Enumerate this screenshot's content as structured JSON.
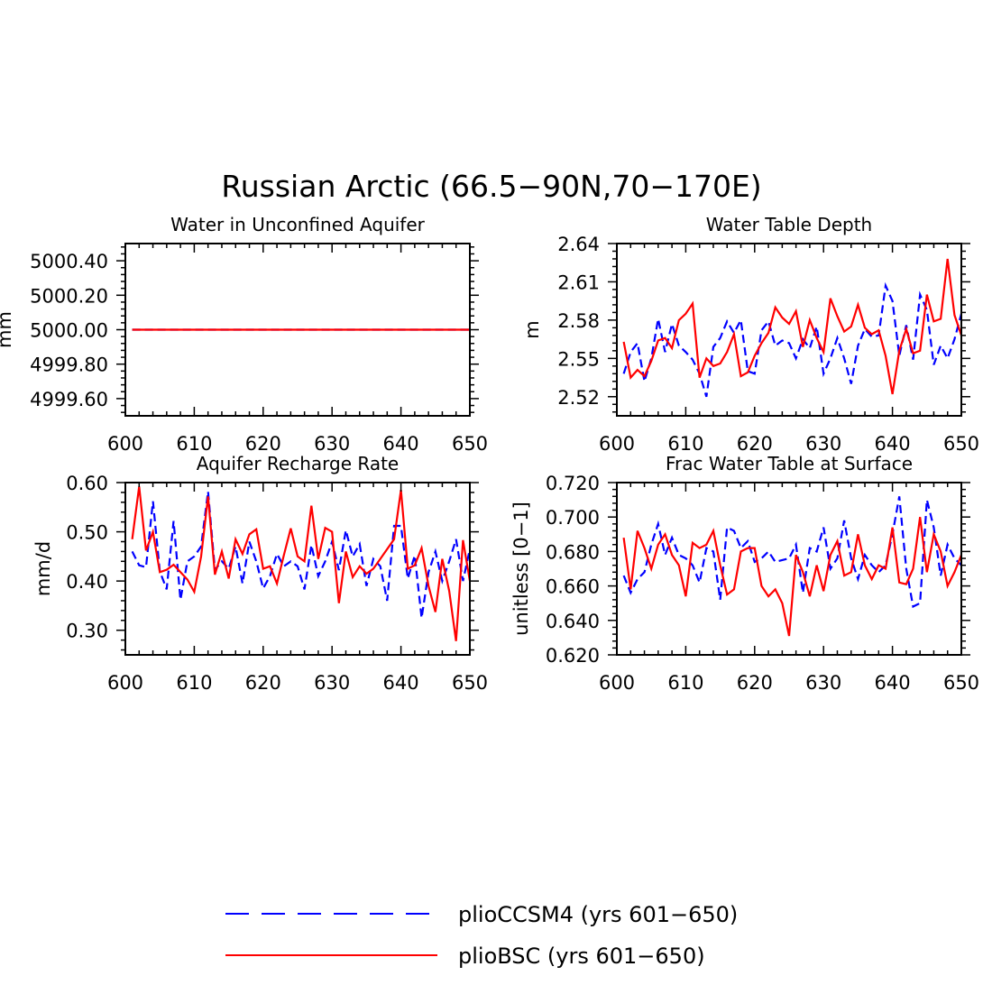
{
  "figure": {
    "title": "Russian Arctic (66.5−90N,70−170E)"
  },
  "legend": {
    "position": "bottom-center",
    "entries": [
      {
        "label": "plioCCSM4 (yrs 601−650)",
        "color": "#0000ff",
        "style": "dashed"
      },
      {
        "label": "plioBSC (yrs 601−650)",
        "color": "#ff0000",
        "style": "solid"
      }
    ]
  },
  "chart_data": [
    {
      "type": "line",
      "title": "Water in Unconfined Aquifer",
      "xlabel": "",
      "ylabel": "mm",
      "xlim": [
        600,
        650
      ],
      "ylim": [
        4999.5,
        5000.5
      ],
      "xticks": [
        600,
        610,
        620,
        630,
        640,
        650
      ],
      "xtick_labels": [
        "600",
        "610",
        "620",
        "630",
        "640",
        "650"
      ],
      "yticks": [
        4999.6,
        4999.8,
        5000.0,
        5000.2,
        5000.4
      ],
      "ytick_labels": [
        "4999.60",
        "4999.80",
        "5000.00",
        "5000.20",
        "5000.40"
      ],
      "x_start": 601,
      "series": [
        {
          "name": "plioCCSM4 (yrs 601−650)",
          "color": "#0000ff",
          "style": "dashed",
          "values": [
            5000,
            5000,
            5000,
            5000,
            5000,
            5000,
            5000,
            5000,
            5000,
            5000,
            5000,
            5000,
            5000,
            5000,
            5000,
            5000,
            5000,
            5000,
            5000,
            5000,
            5000,
            5000,
            5000,
            5000,
            5000,
            5000,
            5000,
            5000,
            5000,
            5000,
            5000,
            5000,
            5000,
            5000,
            5000,
            5000,
            5000,
            5000,
            5000,
            5000,
            5000,
            5000,
            5000,
            5000,
            5000,
            5000,
            5000,
            5000,
            5000,
            5000
          ]
        },
        {
          "name": "plioBSC (yrs 601−650)",
          "color": "#ff0000",
          "style": "solid",
          "values": [
            5000,
            5000,
            5000,
            5000,
            5000,
            5000,
            5000,
            5000,
            5000,
            5000,
            5000,
            5000,
            5000,
            5000,
            5000,
            5000,
            5000,
            5000,
            5000,
            5000,
            5000,
            5000,
            5000,
            5000,
            5000,
            5000,
            5000,
            5000,
            5000,
            5000,
            5000,
            5000,
            5000,
            5000,
            5000,
            5000,
            5000,
            5000,
            5000,
            5000,
            5000,
            5000,
            5000,
            5000,
            5000,
            5000,
            5000,
            5000,
            5000,
            5000
          ]
        }
      ]
    },
    {
      "type": "line",
      "title": "Water Table Depth",
      "xlabel": "",
      "ylabel": "m",
      "xlim": [
        600,
        650
      ],
      "ylim": [
        2.505,
        2.64
      ],
      "xticks": [
        600,
        610,
        620,
        630,
        640,
        650
      ],
      "xtick_labels": [
        "600",
        "610",
        "620",
        "630",
        "640",
        "650"
      ],
      "yticks": [
        2.52,
        2.55,
        2.58,
        2.61,
        2.64
      ],
      "ytick_labels": [
        "2.52",
        "2.55",
        "2.58",
        "2.61",
        "2.64"
      ],
      "x_start": 601,
      "series": [
        {
          "name": "plioCCSM4 (yrs 601−650)",
          "color": "#0000ff",
          "style": "dashed",
          "values": [
            2.538,
            2.555,
            2.562,
            2.532,
            2.55,
            2.581,
            2.555,
            2.577,
            2.56,
            2.555,
            2.549,
            2.538,
            2.52,
            2.559,
            2.566,
            2.579,
            2.57,
            2.58,
            2.54,
            2.538,
            2.572,
            2.579,
            2.56,
            2.564,
            2.562,
            2.55,
            2.565,
            2.558,
            2.575,
            2.538,
            2.55,
            2.566,
            2.55,
            2.53,
            2.56,
            2.573,
            2.567,
            2.568,
            2.607,
            2.595,
            2.552,
            2.576,
            2.549,
            2.6,
            2.588,
            2.545,
            2.56,
            2.55,
            2.565,
            2.585
          ]
        },
        {
          "name": "plioBSC (yrs 601−650)",
          "color": "#ff0000",
          "style": "solid",
          "values": [
            2.563,
            2.535,
            2.541,
            2.536,
            2.548,
            2.564,
            2.566,
            2.558,
            2.58,
            2.585,
            2.593,
            2.535,
            2.55,
            2.544,
            2.546,
            2.555,
            2.569,
            2.536,
            2.539,
            2.552,
            2.562,
            2.57,
            2.59,
            2.582,
            2.577,
            2.587,
            2.559,
            2.58,
            2.566,
            2.555,
            2.597,
            2.583,
            2.571,
            2.575,
            2.592,
            2.574,
            2.569,
            2.572,
            2.552,
            2.522,
            2.556,
            2.573,
            2.554,
            2.556,
            2.6,
            2.579,
            2.581,
            2.628,
            2.584,
            2.568
          ]
        }
      ]
    },
    {
      "type": "line",
      "title": "Aquifer Recharge Rate",
      "xlabel": "",
      "ylabel": "mm/d",
      "xlim": [
        600,
        650
      ],
      "ylim": [
        0.25,
        0.6
      ],
      "xticks": [
        600,
        610,
        620,
        630,
        640,
        650
      ],
      "xtick_labels": [
        "600",
        "610",
        "620",
        "630",
        "640",
        "650"
      ],
      "yticks": [
        0.3,
        0.4,
        0.5,
        0.6
      ],
      "ytick_labels": [
        "0.30",
        "0.40",
        "0.50",
        "0.60"
      ],
      "x_start": 601,
      "series": [
        {
          "name": "plioCCSM4 (yrs 601−650)",
          "color": "#0000ff",
          "style": "dashed",
          "values": [
            0.46,
            0.432,
            0.428,
            0.562,
            0.42,
            0.383,
            0.522,
            0.362,
            0.44,
            0.45,
            0.47,
            0.582,
            0.423,
            0.44,
            0.425,
            0.47,
            0.395,
            0.48,
            0.44,
            0.385,
            0.41,
            0.455,
            0.43,
            0.44,
            0.43,
            0.383,
            0.473,
            0.41,
            0.44,
            0.48,
            0.422,
            0.503,
            0.45,
            0.475,
            0.39,
            0.445,
            0.43,
            0.36,
            0.512,
            0.512,
            0.405,
            0.452,
            0.325,
            0.418,
            0.46,
            0.4,
            0.44,
            0.485,
            0.4,
            0.465
          ]
        },
        {
          "name": "plioBSC (yrs 601−650)",
          "color": "#ff0000",
          "style": "solid",
          "values": [
            0.485,
            0.592,
            0.462,
            0.5,
            0.418,
            0.423,
            0.433,
            0.418,
            0.403,
            0.378,
            0.45,
            0.572,
            0.413,
            0.46,
            0.405,
            0.485,
            0.455,
            0.495,
            0.505,
            0.425,
            0.43,
            0.395,
            0.452,
            0.507,
            0.45,
            0.44,
            0.553,
            0.445,
            0.508,
            0.5,
            0.355,
            0.46,
            0.408,
            0.43,
            0.415,
            0.425,
            0.445,
            0.465,
            0.485,
            0.585,
            0.425,
            0.432,
            0.467,
            0.39,
            0.337,
            0.445,
            0.38,
            0.278,
            0.483,
            0.4
          ]
        }
      ]
    },
    {
      "type": "line",
      "title": "Frac Water Table at Surface",
      "xlabel": "",
      "ylabel": "unitless [0−1]",
      "xlim": [
        600,
        650
      ],
      "ylim": [
        0.62,
        0.72
      ],
      "xticks": [
        600,
        610,
        620,
        630,
        640,
        650
      ],
      "xtick_labels": [
        "600",
        "610",
        "620",
        "630",
        "640",
        "650"
      ],
      "yticks": [
        0.62,
        0.64,
        0.66,
        0.68,
        0.7,
        0.72
      ],
      "ytick_labels": [
        "0.620",
        "0.640",
        "0.660",
        "0.680",
        "0.700",
        "0.720"
      ],
      "x_start": 601,
      "series": [
        {
          "name": "plioCCSM4 (yrs 601−650)",
          "color": "#0000ff",
          "style": "dashed",
          "values": [
            0.666,
            0.656,
            0.664,
            0.668,
            0.684,
            0.696,
            0.678,
            0.688,
            0.678,
            0.676,
            0.672,
            0.662,
            0.682,
            0.68,
            0.652,
            0.694,
            0.692,
            0.682,
            0.686,
            0.674,
            0.676,
            0.68,
            0.674,
            0.675,
            0.676,
            0.684,
            0.656,
            0.682,
            0.68,
            0.694,
            0.67,
            0.676,
            0.698,
            0.676,
            0.664,
            0.678,
            0.672,
            0.668,
            0.672,
            0.69,
            0.712,
            0.67,
            0.648,
            0.65,
            0.71,
            0.694,
            0.666,
            0.684,
            0.676,
            0.672
          ]
        },
        {
          "name": "plioBSC (yrs 601−650)",
          "color": "#ff0000",
          "style": "solid",
          "values": [
            0.688,
            0.658,
            0.692,
            0.682,
            0.67,
            0.684,
            0.69,
            0.678,
            0.672,
            0.654,
            0.685,
            0.682,
            0.684,
            0.692,
            0.672,
            0.655,
            0.658,
            0.68,
            0.682,
            0.682,
            0.66,
            0.654,
            0.658,
            0.65,
            0.631,
            0.678,
            0.668,
            0.654,
            0.672,
            0.657,
            0.678,
            0.686,
            0.666,
            0.668,
            0.69,
            0.672,
            0.664,
            0.672,
            0.67,
            0.694,
            0.662,
            0.661,
            0.67,
            0.7,
            0.668,
            0.69,
            0.68,
            0.66,
            0.668,
            0.678
          ]
        }
      ]
    }
  ]
}
